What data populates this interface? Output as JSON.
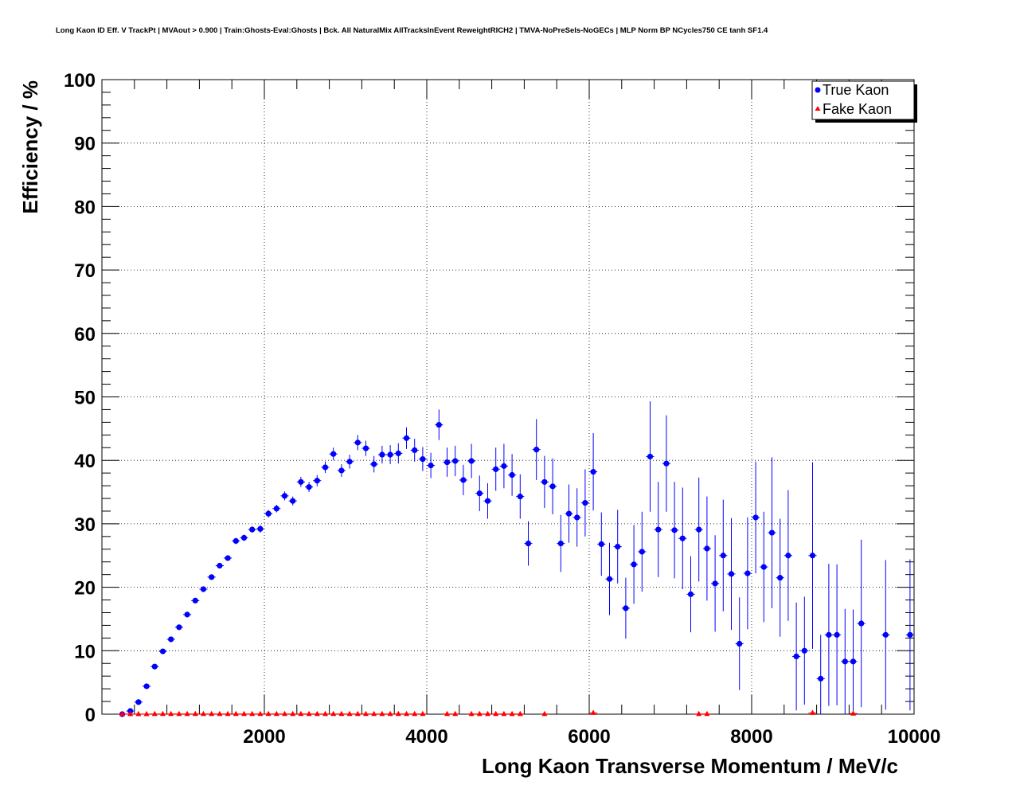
{
  "chart_data": {
    "type": "scatter",
    "title": "Long Kaon ID Eff. V TrackPt | MVAout > 0.900 | Train:Ghosts-Eval:Ghosts | Bck. All NaturalMix AllTracksInEvent ReweightRICH2 | TMVA-NoPreSels-NoGECs | MLP Norm BP NCycles750 CE tanh SF1.4",
    "xlabel": "Long Kaon Transverse Momentum / MeV/c",
    "ylabel": "Efficiency / %",
    "xlim": [
      0,
      10000
    ],
    "ylim": [
      0,
      100
    ],
    "x_ticks": [
      "2000",
      "4000",
      "6000",
      "8000",
      "10000"
    ],
    "y_ticks": [
      "0",
      "10",
      "20",
      "30",
      "40",
      "50",
      "60",
      "70",
      "80",
      "90",
      "100"
    ],
    "grid": true,
    "legend_position": "top-right",
    "series": [
      {
        "name": "True Kaon",
        "color": "#0000ff",
        "marker": "circle",
        "x": [
          250,
          350,
          450,
          550,
          650,
          750,
          850,
          950,
          1050,
          1150,
          1250,
          1350,
          1450,
          1550,
          1650,
          1750,
          1850,
          1950,
          2050,
          2150,
          2250,
          2350,
          2450,
          2550,
          2650,
          2750,
          2850,
          2950,
          3050,
          3150,
          3250,
          3350,
          3450,
          3550,
          3650,
          3750,
          3850,
          3950,
          4050,
          4150,
          4250,
          4350,
          4450,
          4550,
          4650,
          4750,
          4850,
          4950,
          5050,
          5150,
          5250,
          5350,
          5450,
          5550,
          5650,
          5750,
          5850,
          5950,
          6050,
          6150,
          6250,
          6350,
          6450,
          6550,
          6650,
          6750,
          6850,
          6950,
          7050,
          7150,
          7250,
          7350,
          7450,
          7550,
          7650,
          7750,
          7850,
          7950,
          8050,
          8150,
          8250,
          8350,
          8450,
          8550,
          8650,
          8750,
          8850,
          8950,
          9050,
          9150,
          9250,
          9350,
          9650,
          9950
        ],
        "y": [
          0,
          0.5,
          1.9,
          4.4,
          7.5,
          9.9,
          11.8,
          13.7,
          15.7,
          17.9,
          19.7,
          21.6,
          23.4,
          24.6,
          27.3,
          27.8,
          29.1,
          29.2,
          31.6,
          32.4,
          34.4,
          33.6,
          36.6,
          35.8,
          36.8,
          38.9,
          41.0,
          38.4,
          39.8,
          42.8,
          41.9,
          39.4,
          40.9,
          40.9,
          41.1,
          43.5,
          41.6,
          40.2,
          39.2,
          45.6,
          39.7,
          39.9,
          36.9,
          39.9,
          34.8,
          33.6,
          38.6,
          39.1,
          37.7,
          34.3,
          26.9,
          41.7,
          36.6,
          35.9,
          26.9,
          31.6,
          31.0,
          33.3,
          38.2,
          26.8,
          21.3,
          26.4,
          16.7,
          23.6,
          25.6,
          40.6,
          29.1,
          39.5,
          29.0,
          27.7,
          18.9,
          29.1,
          26.1,
          20.6,
          25.0,
          22.1,
          11.1,
          22.2,
          31.0,
          23.2,
          28.6,
          21.5,
          25.0,
          9.1,
          10.0,
          25.0,
          5.6,
          12.5,
          12.5,
          8.3,
          8.3,
          14.3,
          12.5,
          12.5
        ],
        "y_err": [
          0.1,
          0.2,
          0.3,
          0.3,
          0.3,
          0.3,
          0.3,
          0.3,
          0.3,
          0.3,
          0.4,
          0.4,
          0.4,
          0.4,
          0.5,
          0.5,
          0.5,
          0.6,
          0.6,
          0.6,
          0.7,
          0.7,
          0.8,
          0.8,
          0.9,
          0.9,
          1.0,
          1.0,
          1.1,
          1.2,
          1.2,
          1.3,
          1.4,
          1.5,
          1.6,
          1.7,
          1.8,
          1.9,
          2.0,
          2.4,
          2.3,
          2.4,
          2.4,
          2.7,
          2.8,
          2.8,
          3.4,
          3.5,
          3.3,
          3.5,
          3.5,
          4.8,
          4.1,
          4.4,
          4.5,
          4.6,
          4.6,
          5.3,
          6.1,
          5.0,
          5.7,
          5.8,
          4.8,
          6.2,
          6.3,
          8.7,
          7.5,
          7.6,
          7.6,
          8.0,
          6.0,
          8.2,
          8.2,
          7.6,
          8.8,
          8.8,
          7.3,
          8.8,
          8.8,
          8.7,
          11.9,
          9.3,
          10.3,
          8.5,
          8.5,
          14.7,
          6.9,
          11.2,
          11.1,
          8.3,
          8.2,
          13.2,
          11.8,
          11.9
        ]
      },
      {
        "name": "Fake Kaon",
        "color": "#ff0000",
        "marker": "triangle",
        "x": [
          250,
          350,
          450,
          550,
          650,
          750,
          850,
          950,
          1050,
          1150,
          1250,
          1350,
          1450,
          1550,
          1650,
          1750,
          1850,
          1950,
          2050,
          2150,
          2250,
          2350,
          2450,
          2550,
          2650,
          2750,
          2850,
          2950,
          3050,
          3150,
          3250,
          3350,
          3450,
          3550,
          3650,
          3750,
          3850,
          3950,
          4250,
          4350,
          4550,
          4650,
          4750,
          4850,
          4950,
          5050,
          5150,
          5450,
          6050,
          7350,
          7450,
          8750,
          9250
        ],
        "y": [
          0.02,
          0.02,
          0.02,
          0.02,
          0.03,
          0.03,
          0.03,
          0.03,
          0.03,
          0.03,
          0.03,
          0.03,
          0.03,
          0.03,
          0.03,
          0.03,
          0.03,
          0.03,
          0.03,
          0.03,
          0.03,
          0.03,
          0.03,
          0.03,
          0.03,
          0.03,
          0.03,
          0.03,
          0.03,
          0.03,
          0.03,
          0.03,
          0.03,
          0.03,
          0.03,
          0.03,
          0.03,
          0.03,
          0.03,
          0.03,
          0.03,
          0.03,
          0.03,
          0.03,
          0.03,
          0.03,
          0.03,
          0.03,
          0.2,
          0.03,
          0.03,
          0.2,
          0.1
        ],
        "y_err": [
          0.01,
          0.01,
          0.01,
          0.01,
          0.01,
          0.01,
          0.01,
          0.01,
          0.01,
          0.01,
          0.01,
          0.01,
          0.01,
          0.01,
          0.01,
          0.01,
          0.01,
          0.01,
          0.01,
          0.01,
          0.01,
          0.01,
          0.01,
          0.01,
          0.01,
          0.01,
          0.01,
          0.01,
          0.01,
          0.01,
          0.01,
          0.01,
          0.01,
          0.01,
          0.01,
          0.01,
          0.01,
          0.01,
          0.01,
          0.01,
          0.01,
          0.01,
          0.01,
          0.01,
          0.01,
          0.01,
          0.01,
          0.01,
          0.2,
          0.01,
          0.01,
          0.2,
          0.1
        ]
      }
    ]
  }
}
